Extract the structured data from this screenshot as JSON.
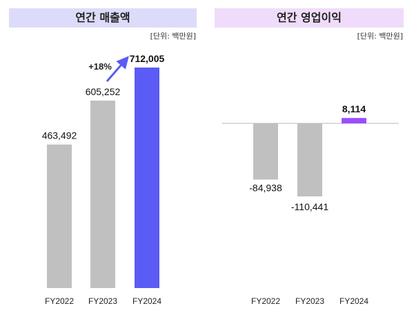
{
  "chart_data": [
    {
      "type": "bar",
      "title": "연간 매출액",
      "unit_label": "[단위: 백만원]",
      "header_color": "#dcdcfa",
      "categories": [
        "FY2022",
        "FY2023",
        "FY2024"
      ],
      "values": [
        463492,
        605252,
        712005
      ],
      "value_labels": [
        "463,492",
        "605,252",
        "712,005"
      ],
      "bar_colors": [
        "#c0c0c0",
        "#c0c0c0",
        "#5b5bf5"
      ],
      "annotation": "+18%",
      "ylim": [
        0,
        712005
      ],
      "grid": false
    },
    {
      "type": "bar",
      "title": "연간 영업이익",
      "unit_label": "[단위: 백만원]",
      "header_color": "#f0dcfa",
      "categories": [
        "FY2022",
        "FY2023",
        "FY2024"
      ],
      "values": [
        -84938,
        -110441,
        8114
      ],
      "value_labels": [
        "-84,938",
        "-110,441",
        "8,114"
      ],
      "bar_colors": [
        "#c0c0c0",
        "#c0c0c0",
        "#9b4dff"
      ],
      "grid": false
    }
  ]
}
